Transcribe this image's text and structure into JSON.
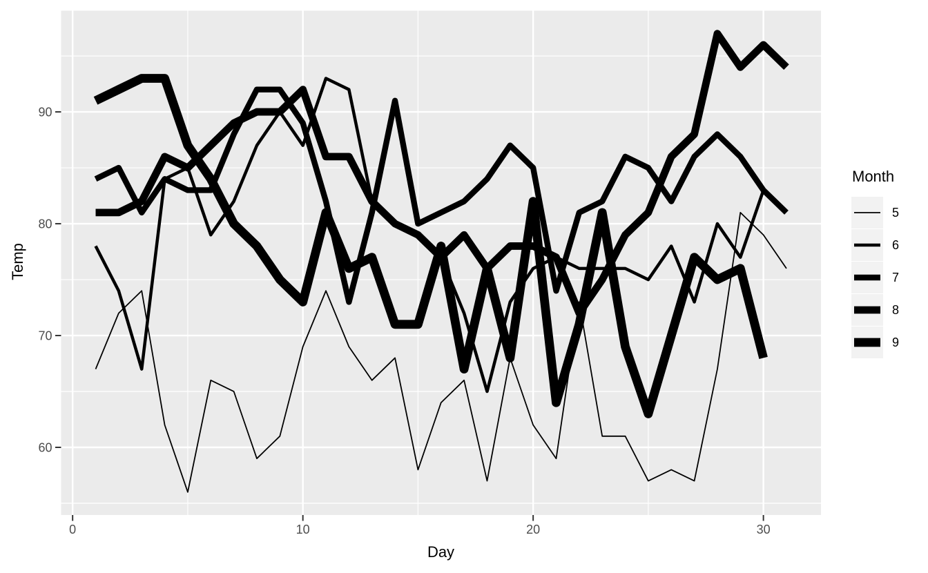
{
  "chart_data": {
    "type": "line",
    "title": "",
    "xlabel": "Day",
    "ylabel": "Temp",
    "legend_title": "Month",
    "legend_position": "right",
    "grid": true,
    "xlim": [
      -0.5,
      32.5
    ],
    "ylim": [
      53.95,
      99.05
    ],
    "x_ticks": [
      0,
      10,
      20,
      30
    ],
    "x_minor_ticks": [
      5,
      15,
      25
    ],
    "y_ticks": [
      60,
      70,
      80,
      90
    ],
    "y_minor_ticks": [
      55,
      65,
      75,
      85,
      95
    ],
    "colors": {
      "panel_background": "#EBEBEB",
      "grid": "#FFFFFF",
      "tick_label": "#4D4D4D",
      "tick_mark": "#333333",
      "line": "#000000",
      "legend_key_background": "#F2F2F2",
      "figure_background": "#FFFFFF"
    },
    "size_mapping": "line width encodes Month",
    "series": [
      {
        "name": "5",
        "month": 5,
        "stroke_px": 1.8,
        "days": [
          1,
          2,
          3,
          4,
          5,
          6,
          7,
          8,
          9,
          10,
          11,
          12,
          13,
          14,
          15,
          16,
          17,
          18,
          19,
          20,
          21,
          22,
          23,
          24,
          25,
          26,
          27,
          28,
          29,
          30,
          31
        ],
        "temps": [
          67,
          72,
          74,
          62,
          56,
          66,
          65,
          59,
          61,
          69,
          74,
          69,
          66,
          68,
          58,
          64,
          66,
          57,
          68,
          62,
          59,
          73,
          61,
          61,
          57,
          58,
          57,
          67,
          81,
          79,
          76
        ]
      },
      {
        "name": "6",
        "month": 6,
        "stroke_px": 4.5,
        "days": [
          1,
          2,
          3,
          4,
          5,
          6,
          7,
          8,
          9,
          10,
          11,
          12,
          13,
          14,
          15,
          16,
          17,
          18,
          19,
          20,
          21,
          22,
          23,
          24,
          25,
          26,
          27,
          28,
          29,
          30
        ],
        "temps": [
          78,
          74,
          67,
          84,
          85,
          79,
          82,
          87,
          90,
          87,
          93,
          92,
          82,
          80,
          79,
          77,
          72,
          65,
          73,
          76,
          77,
          76,
          76,
          76,
          75,
          78,
          73,
          80,
          77,
          83
        ]
      },
      {
        "name": "7",
        "month": 7,
        "stroke_px": 8.4,
        "days": [
          1,
          2,
          3,
          4,
          5,
          6,
          7,
          8,
          9,
          10,
          11,
          12,
          13,
          14,
          15,
          16,
          17,
          18,
          19,
          20,
          21,
          22,
          23,
          24,
          25,
          26,
          27,
          28,
          29,
          30,
          31
        ],
        "temps": [
          84,
          85,
          81,
          84,
          83,
          83,
          88,
          92,
          92,
          89,
          82,
          73,
          81,
          91,
          80,
          81,
          82,
          84,
          87,
          85,
          74,
          81,
          82,
          86,
          85,
          82,
          86,
          88,
          86,
          83,
          81
        ]
      },
      {
        "name": "8",
        "month": 8,
        "stroke_px": 10.8,
        "days": [
          1,
          2,
          3,
          4,
          5,
          6,
          7,
          8,
          9,
          10,
          11,
          12,
          13,
          14,
          15,
          16,
          17,
          18,
          19,
          20,
          21,
          22,
          23,
          24,
          25,
          26,
          27,
          28,
          29,
          30,
          31
        ],
        "temps": [
          81,
          81,
          82,
          86,
          85,
          87,
          89,
          90,
          90,
          92,
          86,
          86,
          82,
          80,
          79,
          77,
          79,
          76,
          78,
          78,
          77,
          72,
          75,
          79,
          81,
          86,
          88,
          97,
          94,
          96,
          94
        ]
      },
      {
        "name": "9",
        "month": 9,
        "stroke_px": 12.8,
        "days": [
          1,
          2,
          3,
          4,
          5,
          6,
          7,
          8,
          9,
          10,
          11,
          12,
          13,
          14,
          15,
          16,
          17,
          18,
          19,
          20,
          21,
          22,
          23,
          24,
          25,
          26,
          27,
          28,
          29,
          30
        ],
        "temps": [
          91,
          92,
          93,
          93,
          87,
          84,
          80,
          78,
          75,
          73,
          81,
          76,
          77,
          71,
          71,
          78,
          67,
          76,
          68,
          82,
          64,
          71,
          81,
          69,
          63,
          70,
          77,
          75,
          76,
          68
        ]
      }
    ]
  }
}
